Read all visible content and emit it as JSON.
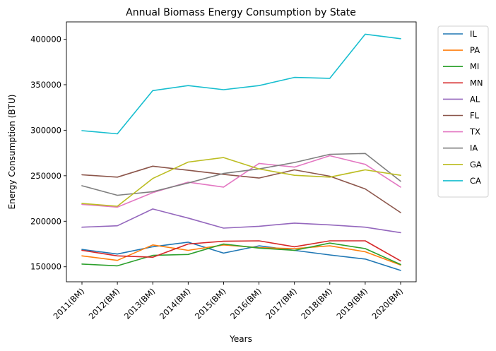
{
  "chart_data": {
    "type": "line",
    "title": "Annual Biomass Energy Consumption by State",
    "xlabel": "Years",
    "ylabel": "Energy Consumption (BTU)",
    "categories": [
      "2011(BM)",
      "2012(BM)",
      "2013(BM)",
      "2014(BM)",
      "2015(BM)",
      "2016(BM)",
      "2017(BM)",
      "2018(BM)",
      "2019(BM)",
      "2020(BM)"
    ],
    "ylim": [
      133500,
      419000
    ],
    "yticks": [
      150000,
      200000,
      250000,
      300000,
      350000,
      400000
    ],
    "ytick_labels": [
      "150000",
      "200000",
      "250000",
      "300000",
      "350000",
      "400000"
    ],
    "grid": false,
    "legend_position": "outside-right",
    "series": [
      {
        "name": "IL",
        "color": "#1f77b4",
        "values": [
          169000,
          164000,
          172000,
          177000,
          165000,
          173000,
          168000,
          163000,
          158500,
          146000
        ]
      },
      {
        "name": "PA",
        "color": "#ff7f0e",
        "values": [
          162000,
          157000,
          174000,
          168000,
          174000,
          171000,
          170000,
          173000,
          166500,
          152000
        ]
      },
      {
        "name": "MI",
        "color": "#2ca02c",
        "values": [
          153000,
          151000,
          162500,
          163500,
          175000,
          170500,
          168000,
          176000,
          170000,
          152500
        ]
      },
      {
        "name": "MN",
        "color": "#d62728",
        "values": [
          168000,
          162000,
          160500,
          175000,
          178000,
          178500,
          172000,
          178500,
          178500,
          156500
        ]
      },
      {
        "name": "AL",
        "color": "#9467bd",
        "values": [
          193500,
          195000,
          213500,
          203500,
          192500,
          194500,
          198000,
          196000,
          193500,
          187500
        ]
      },
      {
        "name": "FL",
        "color": "#8c564b",
        "values": [
          251000,
          248500,
          260500,
          256000,
          251500,
          247500,
          256500,
          249500,
          235500,
          209500
        ]
      },
      {
        "name": "TX",
        "color": "#e377c2",
        "values": [
          218500,
          215500,
          231500,
          243000,
          237500,
          263500,
          259500,
          272000,
          262500,
          237500
        ]
      },
      {
        "name": "IA",
        "color": "#7f7f7f",
        "values": [
          239000,
          228500,
          232500,
          242000,
          252500,
          257500,
          264500,
          273500,
          274500,
          244000
        ]
      },
      {
        "name": "GA",
        "color": "#bcbd22",
        "values": [
          219500,
          216500,
          247000,
          265000,
          270000,
          257500,
          250500,
          248500,
          256500,
          250500
        ]
      },
      {
        "name": "CA",
        "color": "#17becf",
        "values": [
          299500,
          296000,
          343500,
          349000,
          344500,
          349000,
          358000,
          357000,
          405500,
          400500
        ]
      }
    ]
  }
}
